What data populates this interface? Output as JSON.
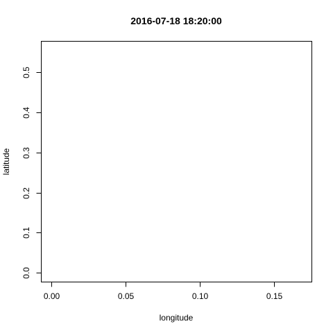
{
  "chart_data": {
    "type": "scatter",
    "title": "2016-07-18 18:20:00",
    "xlabel": "longitude",
    "ylabel": "latitude",
    "xlim": [
      -0.007,
      0.175
    ],
    "ylim": [
      -0.022,
      0.578
    ],
    "xticks": [
      0.0,
      0.05,
      0.1,
      0.15
    ],
    "xtick_labels": [
      "0.00",
      "0.05",
      "0.10",
      "0.15"
    ],
    "yticks": [
      0.0,
      0.1,
      0.2,
      0.3,
      0.4,
      0.5
    ],
    "ytick_labels": [
      "0.0",
      "0.1",
      "0.2",
      "0.3",
      "0.4",
      "0.5"
    ],
    "grid": false,
    "legend": "none",
    "series": []
  }
}
